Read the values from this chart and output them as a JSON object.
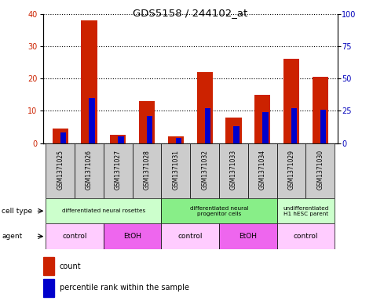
{
  "title": "GDS5158 / 244102_at",
  "samples": [
    "GSM1371025",
    "GSM1371026",
    "GSM1371027",
    "GSM1371028",
    "GSM1371031",
    "GSM1371032",
    "GSM1371033",
    "GSM1371034",
    "GSM1371029",
    "GSM1371030"
  ],
  "counts": [
    4.5,
    38,
    2.5,
    13,
    2,
    22,
    8,
    15,
    26,
    20.5
  ],
  "percentile_ranks_pct": [
    8.5,
    35,
    5,
    21,
    4,
    27,
    13,
    24,
    27,
    26
  ],
  "ylim_left": [
    0,
    40
  ],
  "ylim_right": [
    0,
    100
  ],
  "yticks_left": [
    0,
    10,
    20,
    30,
    40
  ],
  "yticks_right": [
    0,
    25,
    50,
    75,
    100
  ],
  "bar_color_red": "#cc2200",
  "bar_color_blue": "#0000cc",
  "cell_type_groups": [
    {
      "label": "differentiated neural rosettes",
      "start": 0,
      "end": 4,
      "color": "#ccffcc"
    },
    {
      "label": "differentiated neural\nprogenitor cells",
      "start": 4,
      "end": 8,
      "color": "#88ee88"
    },
    {
      "label": "undifferentiated\nH1 hESC parent",
      "start": 8,
      "end": 10,
      "color": "#ccffcc"
    }
  ],
  "agent_groups": [
    {
      "label": "control",
      "start": 0,
      "end": 2,
      "color": "#ffccff"
    },
    {
      "label": "EtOH",
      "start": 2,
      "end": 4,
      "color": "#ee66ee"
    },
    {
      "label": "control",
      "start": 4,
      "end": 6,
      "color": "#ffccff"
    },
    {
      "label": "EtOH",
      "start": 6,
      "end": 8,
      "color": "#ee66ee"
    },
    {
      "label": "control",
      "start": 8,
      "end": 10,
      "color": "#ffccff"
    }
  ],
  "legend_count_label": "count",
  "legend_pct_label": "percentile rank within the sample",
  "cell_type_label": "cell type",
  "agent_label": "agent",
  "red_bar_width": 0.55,
  "blue_bar_width": 0.2,
  "grid_color": "#000000",
  "bg_color_sample": "#cccccc",
  "tick_label_size": 7,
  "right_tick_color": "#0000bb"
}
